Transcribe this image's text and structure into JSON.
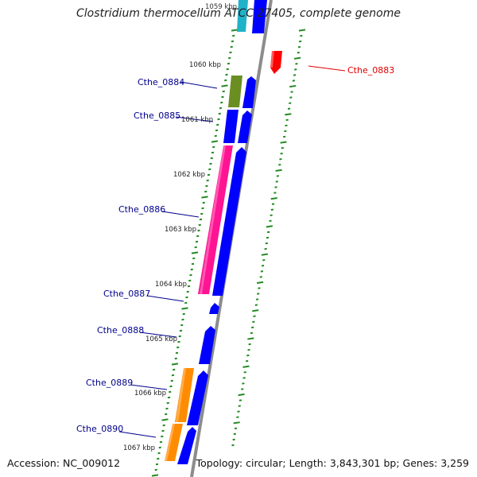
{
  "title": "Clostridium thermocellum ATCC 27405, complete genome",
  "footer": {
    "accession": "Accession: NC_009012",
    "summary": "Topology: circular; Length: 3,843,301 bp; Genes: 3,259"
  },
  "colors": {
    "backbone": "#8c8c8c",
    "cds": "#0000ff",
    "label_blue": "#00008b",
    "label_red": "#e00000",
    "ticks": "#228b22",
    "gene_0884": "#6b8e23",
    "gene_0886": "#ff1493",
    "gene_0889": "#ff8c00",
    "gene_0890": "#ff8c00",
    "gene_0883": "#ff0000",
    "top_cyan": "#20b2c8"
  },
  "ruler": {
    "top_partial": "1059 kbp",
    "ticks": [
      "1060 kbp",
      "1061 kbp",
      "1062 kbp",
      "1063 kbp",
      "1064 kbp",
      "1065 kbp",
      "1066 kbp",
      "1067 kbp"
    ]
  },
  "genes": [
    {
      "label": "Cthe_0883",
      "strand": "reverse",
      "color": "red"
    },
    {
      "label": "Cthe_0884",
      "strand": "forward",
      "color": "olive"
    },
    {
      "label": "Cthe_0885",
      "strand": "forward",
      "color": "blue"
    },
    {
      "label": "Cthe_0886",
      "strand": "forward",
      "color": "pink"
    },
    {
      "label": "Cthe_0887",
      "strand": "forward",
      "color": "blue"
    },
    {
      "label": "Cthe_0888",
      "strand": "forward",
      "color": "blue"
    },
    {
      "label": "Cthe_0889",
      "strand": "forward",
      "color": "orange"
    },
    {
      "label": "Cthe_0890",
      "strand": "forward",
      "color": "orange"
    }
  ]
}
